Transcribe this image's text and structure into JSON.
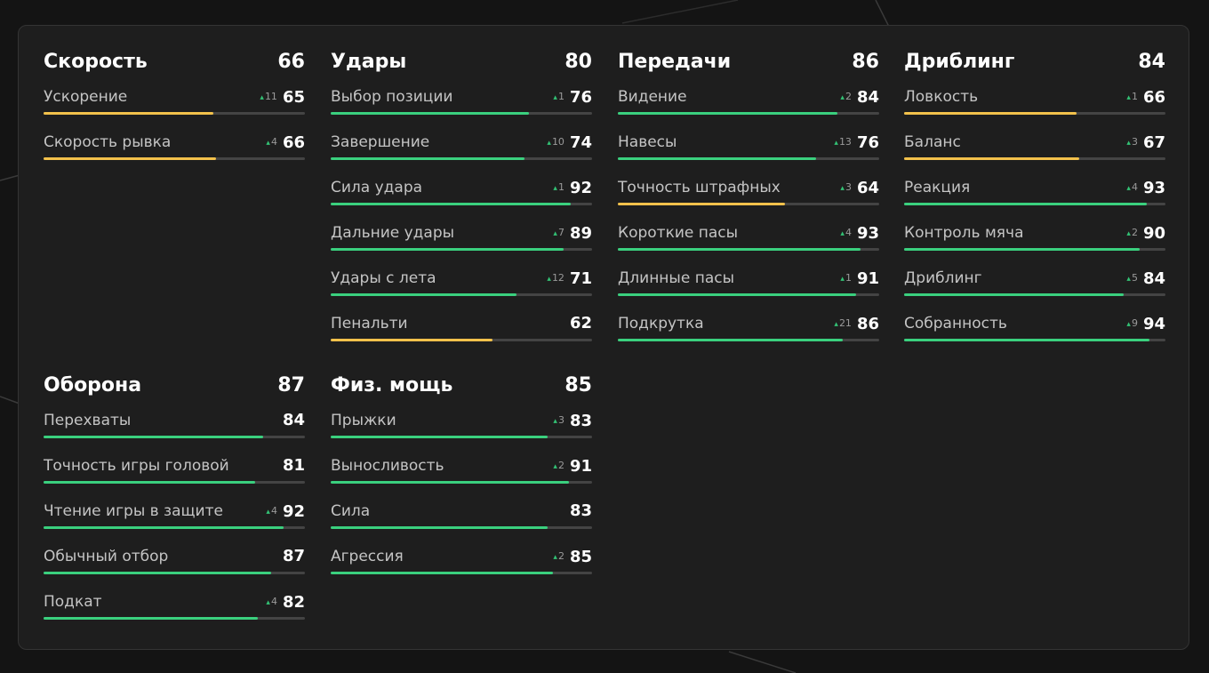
{
  "colors": {
    "high": "#3ad07e",
    "mid": "#f2c14b",
    "track": "#444444",
    "background": "#141414",
    "panel": "#1e1e1e"
  },
  "groups": [
    {
      "title": "Скорость",
      "total": "66",
      "stats": [
        {
          "label": "Ускорение",
          "delta": "11",
          "value": "65"
        },
        {
          "label": "Скорость рывка",
          "delta": "4",
          "value": "66"
        }
      ]
    },
    {
      "title": "Удары",
      "total": "80",
      "stats": [
        {
          "label": "Выбор позиции",
          "delta": "1",
          "value": "76"
        },
        {
          "label": "Завершение",
          "delta": "10",
          "value": "74"
        },
        {
          "label": "Сила удара",
          "delta": "1",
          "value": "92"
        },
        {
          "label": "Дальние удары",
          "delta": "7",
          "value": "89"
        },
        {
          "label": "Удары с лета",
          "delta": "12",
          "value": "71"
        },
        {
          "label": "Пенальти",
          "delta": "",
          "value": "62"
        }
      ]
    },
    {
      "title": "Передачи",
      "total": "86",
      "stats": [
        {
          "label": "Видение",
          "delta": "2",
          "value": "84"
        },
        {
          "label": "Навесы",
          "delta": "13",
          "value": "76"
        },
        {
          "label": "Точность штрафных",
          "delta": "3",
          "value": "64"
        },
        {
          "label": "Короткие пасы",
          "delta": "4",
          "value": "93"
        },
        {
          "label": "Длинные пасы",
          "delta": "1",
          "value": "91"
        },
        {
          "label": "Подкрутка",
          "delta": "21",
          "value": "86"
        }
      ]
    },
    {
      "title": "Дриблинг",
      "total": "84",
      "stats": [
        {
          "label": "Ловкость",
          "delta": "1",
          "value": "66"
        },
        {
          "label": "Баланс",
          "delta": "3",
          "value": "67"
        },
        {
          "label": "Реакция",
          "delta": "4",
          "value": "93"
        },
        {
          "label": "Контроль мяча",
          "delta": "2",
          "value": "90"
        },
        {
          "label": "Дриблинг",
          "delta": "5",
          "value": "84"
        },
        {
          "label": "Собранность",
          "delta": "9",
          "value": "94"
        }
      ]
    },
    {
      "title": "Оборона",
      "total": "87",
      "stats": [
        {
          "label": "Перехваты",
          "delta": "",
          "value": "84"
        },
        {
          "label": "Точность игры головой",
          "delta": "",
          "value": "81"
        },
        {
          "label": "Чтение игры в защите",
          "delta": "4",
          "value": "92"
        },
        {
          "label": "Обычный отбор",
          "delta": "",
          "value": "87"
        },
        {
          "label": "Подкат",
          "delta": "4",
          "value": "82"
        }
      ]
    },
    {
      "title": "Физ. мощь",
      "total": "85",
      "stats": [
        {
          "label": "Прыжки",
          "delta": "3",
          "value": "83"
        },
        {
          "label": "Выносливость",
          "delta": "2",
          "value": "91"
        },
        {
          "label": "Сила",
          "delta": "",
          "value": "83"
        },
        {
          "label": "Агрессия",
          "delta": "2",
          "value": "85"
        }
      ]
    }
  ]
}
